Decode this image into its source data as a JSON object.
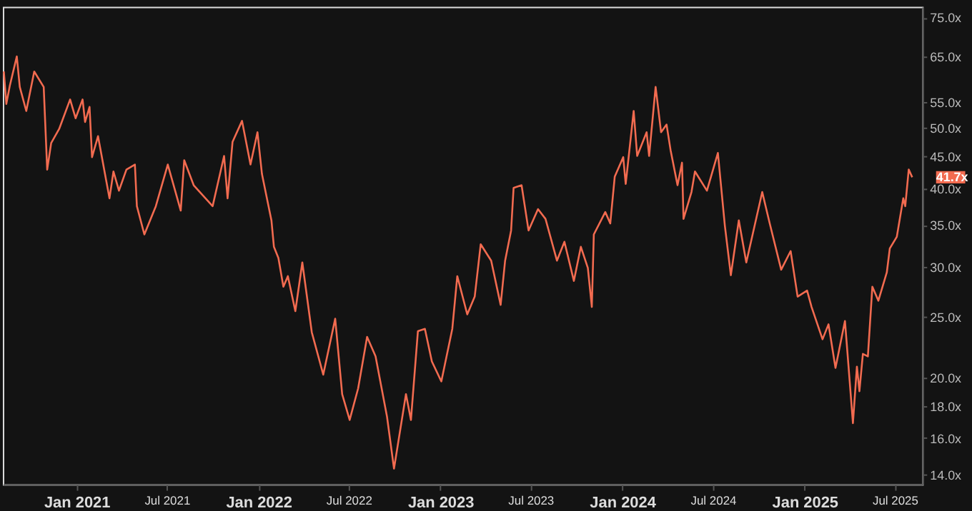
{
  "chart_data": {
    "type": "line",
    "x": [
      "2020-08-08",
      "2020-08-13",
      "2020-08-20",
      "2020-09-03",
      "2020-09-09",
      "2020-09-22",
      "2020-10-08",
      "2020-10-27",
      "2020-11-03",
      "2020-11-11",
      "2020-11-27",
      "2020-12-19",
      "2020-12-30",
      "2021-01-13",
      "2021-01-18",
      "2021-01-27",
      "2021-02-01",
      "2021-02-13",
      "2021-03-08",
      "2021-03-16",
      "2021-03-27",
      "2021-04-11",
      "2021-04-28",
      "2021-05-02",
      "2021-05-17",
      "2021-06-09",
      "2021-07-03",
      "2021-07-29",
      "2021-08-05",
      "2021-08-24",
      "2021-10-01",
      "2021-10-24",
      "2021-10-31",
      "2021-11-10",
      "2021-11-29",
      "2021-12-16",
      "2021-12-30",
      "2022-01-08",
      "2022-01-27",
      "2022-02-01",
      "2022-02-10",
      "2022-02-20",
      "2022-03-01",
      "2022-03-16",
      "2022-03-30",
      "2022-04-18",
      "2022-05-11",
      "2022-06-04",
      "2022-06-18",
      "2022-07-03",
      "2022-07-20",
      "2022-08-07",
      "2022-08-24",
      "2022-09-16",
      "2022-09-30",
      "2022-10-24",
      "2022-11-03",
      "2022-11-17",
      "2022-12-01",
      "2022-12-15",
      "2023-01-03",
      "2023-01-25",
      "2023-02-04",
      "2023-02-24",
      "2023-03-11",
      "2023-03-23",
      "2023-04-13",
      "2023-05-02",
      "2023-05-11",
      "2023-05-23",
      "2023-05-28",
      "2023-06-13",
      "2023-06-27",
      "2023-07-16",
      "2023-07-31",
      "2023-08-23",
      "2023-09-07",
      "2023-09-26",
      "2023-10-10",
      "2023-10-24",
      "2023-11-01",
      "2023-11-05",
      "2023-11-28",
      "2023-12-08",
      "2023-12-17",
      "2024-01-03",
      "2024-01-08",
      "2024-01-24",
      "2024-01-31",
      "2024-02-19",
      "2024-02-24",
      "2024-03-08",
      "2024-03-19",
      "2024-03-30",
      "2024-04-07",
      "2024-04-21",
      "2024-04-30",
      "2024-05-03",
      "2024-05-19",
      "2024-05-26",
      "2024-06-19",
      "2024-07-11",
      "2024-07-25",
      "2024-08-06",
      "2024-08-22",
      "2024-09-06",
      "2024-10-08",
      "2024-10-23",
      "2024-11-15",
      "2024-12-04",
      "2024-12-18",
      "2025-01-06",
      "2025-01-15",
      "2025-02-06",
      "2025-02-18",
      "2025-03-04",
      "2025-03-23",
      "2025-03-28",
      "2025-04-08",
      "2025-04-16",
      "2025-04-21",
      "2025-04-28",
      "2025-05-08",
      "2025-05-17",
      "2025-05-29",
      "2025-06-15",
      "2025-06-21",
      "2025-07-05",
      "2025-07-18",
      "2025-07-22",
      "2025-07-29",
      "2025-08-05"
    ],
    "series": [
      {
        "color": "#f26b50",
        "values": [
          61.5,
          54.6,
          58.4,
          65.0,
          58.1,
          53.2,
          61.5,
          58.1,
          42.9,
          47.3,
          49.8,
          55.5,
          51.8,
          55.5,
          51.1,
          54.0,
          44.9,
          48.5,
          38.6,
          42.6,
          39.7,
          42.9,
          43.7,
          37.5,
          33.8,
          37.5,
          43.7,
          36.9,
          44.4,
          40.5,
          37.5,
          45.1,
          38.6,
          47.5,
          51.3,
          43.7,
          49.2,
          42.2,
          35.6,
          32.3,
          31.0,
          27.9,
          29.0,
          25.5,
          30.5,
          23.6,
          20.2,
          24.8,
          18.8,
          17.1,
          19.2,
          23.2,
          21.6,
          17.3,
          14.3,
          18.8,
          17.1,
          23.7,
          23.9,
          21.2,
          19.7,
          23.9,
          29.0,
          25.2,
          26.9,
          32.6,
          30.7,
          26.1,
          30.7,
          34.3,
          40.1,
          40.5,
          34.3,
          37.1,
          35.8,
          30.7,
          32.9,
          28.5,
          32.3,
          29.9,
          25.9,
          33.8,
          36.7,
          35.2,
          41.8,
          44.9,
          40.7,
          53.2,
          45.1,
          49.2,
          45.1,
          58.1,
          49.2,
          50.6,
          46.1,
          40.5,
          44.0,
          35.8,
          39.5,
          42.6,
          39.7,
          45.6,
          34.9,
          29.1,
          35.6,
          30.5,
          39.5,
          35.2,
          29.7,
          31.8,
          26.9,
          27.5,
          25.9,
          23.0,
          24.3,
          20.7,
          24.6,
          21.9,
          16.9,
          20.8,
          19.0,
          21.8,
          21.6,
          27.9,
          26.5,
          29.4,
          32.1,
          33.5,
          38.6,
          37.5,
          42.9,
          41.7
        ]
      }
    ],
    "xlim": [
      "2020-08-06",
      "2025-08-25"
    ],
    "xticks": [
      {
        "value": "2021-01-01",
        "label": "Jan 2021"
      },
      {
        "value": "2021-07-01",
        "label": "Jul 2021"
      },
      {
        "value": "2022-01-01",
        "label": "Jan 2022"
      },
      {
        "value": "2022-07-01",
        "label": "Jul 2022"
      },
      {
        "value": "2023-01-01",
        "label": "Jan 2023"
      },
      {
        "value": "2023-07-01",
        "label": "Jul 2023"
      },
      {
        "value": "2024-01-01",
        "label": "Jan 2024"
      },
      {
        "value": "2024-07-01",
        "label": "Jul 2024"
      },
      {
        "value": "2025-01-01",
        "label": "Jan 2025"
      },
      {
        "value": "2025-07-01",
        "label": "Jul 2025"
      }
    ],
    "ylim": [
      13.5,
      78
    ],
    "yticks": [
      {
        "value": 14,
        "label": "14.0x"
      },
      {
        "value": 16,
        "label": "16.0x"
      },
      {
        "value": 18,
        "label": "18.0x"
      },
      {
        "value": 20,
        "label": "20.0x"
      },
      {
        "value": 25,
        "label": "25.0x"
      },
      {
        "value": 30,
        "label": "30.0x"
      },
      {
        "value": 35,
        "label": "35.0x"
      },
      {
        "value": 40,
        "label": "40.0x"
      },
      {
        "value": 45,
        "label": "45.0x"
      },
      {
        "value": 50,
        "label": "50.0x"
      },
      {
        "value": 55,
        "label": "55.0x"
      },
      {
        "value": 65,
        "label": "65.0x"
      },
      {
        "value": 75,
        "label": "75.0x"
      }
    ],
    "log": "y",
    "annotations": [
      "41.7x"
    ]
  }
}
